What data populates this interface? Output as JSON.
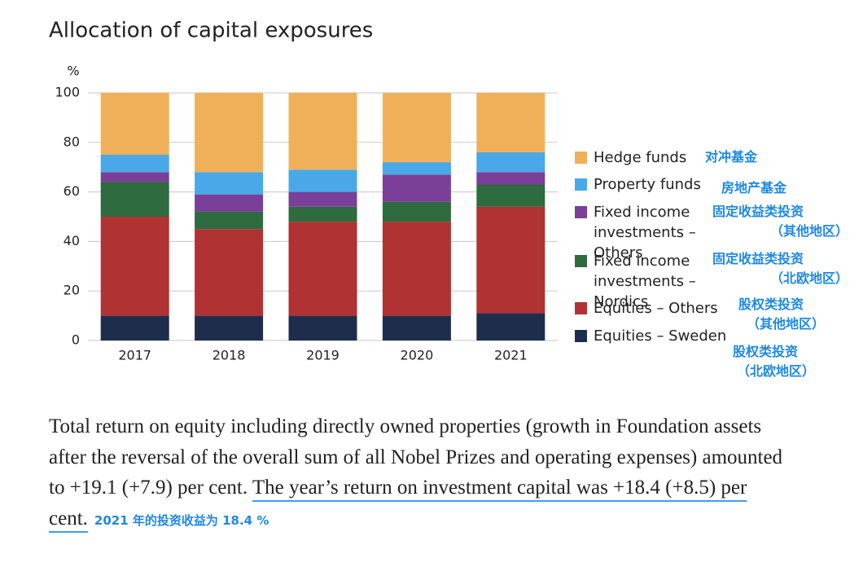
{
  "chart_data": {
    "type": "stacked-bar",
    "title": "Allocation of capital exposures",
    "y_label": "%",
    "categories": [
      "2017",
      "2018",
      "2019",
      "2020",
      "2021"
    ],
    "series": [
      {
        "name": "Equities – Sweden",
        "color": "#1f2d4d",
        "values": [
          10,
          10,
          10,
          10,
          11
        ],
        "annotation": [
          "股权类投资",
          "（北欧地区）"
        ]
      },
      {
        "name": "Equities – Others",
        "color": "#b03232",
        "values": [
          40,
          35,
          38,
          38,
          43
        ],
        "annotation": [
          "股权类投资",
          "（其他地区）"
        ]
      },
      {
        "name": "Fixed income investments – Nordics",
        "color": "#2e6b3e",
        "values": [
          14,
          7,
          6,
          8,
          9
        ],
        "annotation": [
          "固定收益类投资",
          "（北欧地区）"
        ]
      },
      {
        "name": "Fixed income investments – Others",
        "color": "#7a3f98",
        "values": [
          4,
          7,
          6,
          11,
          5
        ],
        "annotation": [
          "固定收益类投资",
          "（其他地区）"
        ]
      },
      {
        "name": "Property funds",
        "color": "#4aa8e8",
        "values": [
          7,
          9,
          9,
          5,
          8
        ],
        "annotation": [
          "房地产基金"
        ]
      },
      {
        "name": "Hedge funds",
        "color": "#f0b05a",
        "values": [
          25,
          32,
          31,
          28,
          24
        ],
        "annotation": [
          "对冲基金"
        ]
      }
    ],
    "ylim": [
      0,
      100
    ],
    "yticks": [
      0,
      20,
      40,
      60,
      80,
      100
    ],
    "grid": true
  },
  "paragraph": {
    "text": "Total return on equity including directly owned properties (growth in Foundation assets after the reversal of the overall sum of all Nobel Prizes and operating expenses) amounted to +19.1 (+7.9) per cent. ",
    "highlight": "The year’s return on investment capital was +18.4 (+8.5) per cent.",
    "note": "2021 年的投资收益为 18.4 %"
  }
}
